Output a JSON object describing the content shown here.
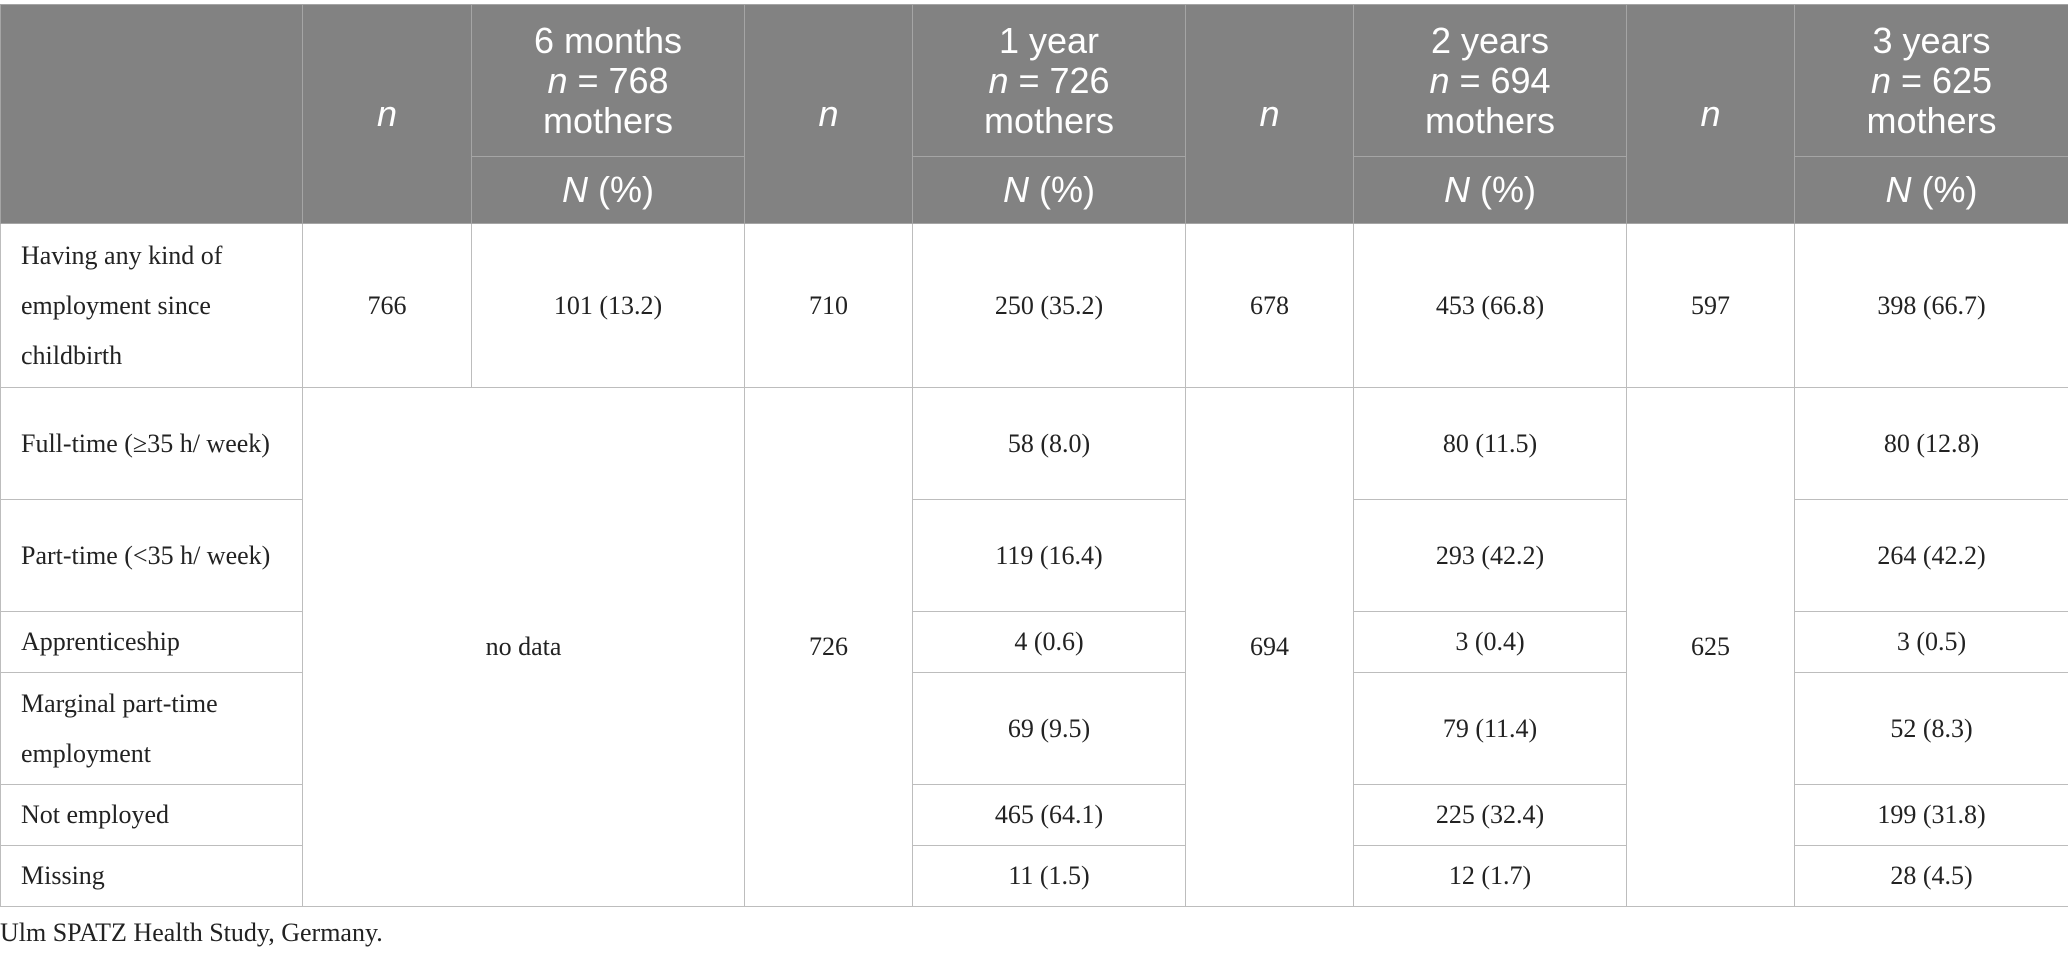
{
  "header": {
    "n_label": "n",
    "groups": [
      {
        "title": "6 months",
        "n_prefix": "n",
        "n_value": " = 768",
        "suffix": "mothers"
      },
      {
        "title": "1 year",
        "n_prefix": "n",
        "n_value": " = 726",
        "suffix": "mothers"
      },
      {
        "title": "2 years",
        "n_prefix": "n",
        "n_value": " = 694",
        "suffix": "mothers"
      },
      {
        "title": "3 years",
        "n_prefix": "n",
        "n_value": " = 625",
        "suffix": "mothers"
      }
    ],
    "pct_prefix": "N",
    "pct_suffix": " (%)"
  },
  "rows": {
    "any": {
      "label": "Having any kind of employment since childbirth",
      "n6": "766",
      "v6": "101 (13.2)",
      "n1": "710",
      "v1": "250 (35.2)",
      "n2": "678",
      "v2": "453 (66.8)",
      "n3": "597",
      "v3": "398 (66.7)"
    },
    "no_data": "no data",
    "n1": "726",
    "n2": "694",
    "n3": "625",
    "details": [
      {
        "label": "Full-time (≥35 h/ week)",
        "y1": "58 (8.0)",
        "y2": "80 (11.5)",
        "y3": "80 (12.8)"
      },
      {
        "label": "Part-time (<35 h/ week)",
        "y1": "119 (16.4)",
        "y2": "293 (42.2)",
        "y3": "264 (42.2)"
      },
      {
        "label": "Apprenticeship",
        "y1": "4 (0.6)",
        "y2": "3 (0.4)",
        "y3": "3 (0.5)"
      },
      {
        "label": "Marginal part-time employment",
        "y1": "69 (9.5)",
        "y2": "79 (11.4)",
        "y3": "52 (8.3)"
      },
      {
        "label": "Not employed",
        "y1": "465 (64.1)",
        "y2": "225 (32.4)",
        "y3": "199 (31.8)"
      },
      {
        "label": "Missing",
        "y1": "11 (1.5)",
        "y2": "12 (1.7)",
        "y3": "28 (4.5)"
      }
    ]
  },
  "footnote": "Ulm SPATZ Health Study, Germany."
}
